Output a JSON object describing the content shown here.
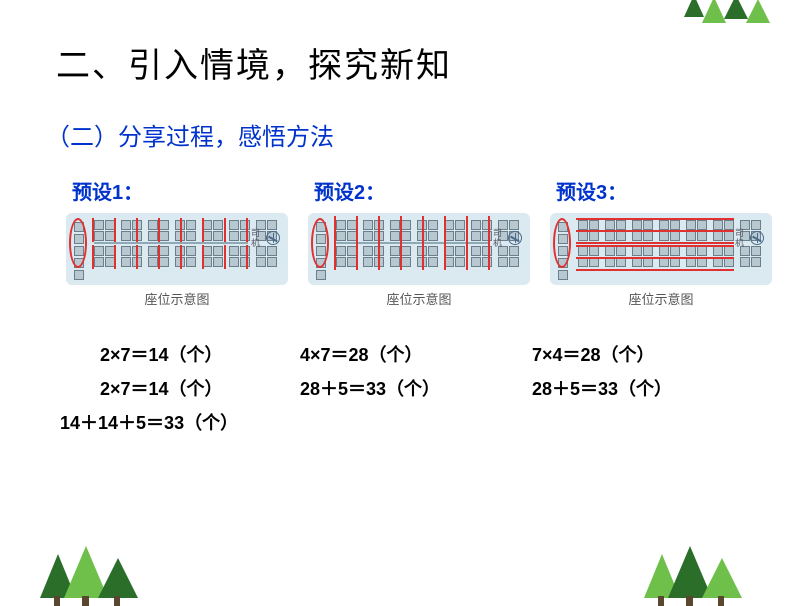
{
  "decor": {
    "tree_green_dark": "#2a6e2a",
    "tree_green_light": "#6fbf4b"
  },
  "main_title": "二、引入情境，探究新知",
  "sub_title": "（二）分享过程，感悟方法",
  "title_color": "#0033cc",
  "presets": {
    "p1": {
      "label": "预设1：",
      "caption": "座位示意图"
    },
    "p2": {
      "label": "预设2：",
      "caption": "座位示意图"
    },
    "p3": {
      "label": "预设3：",
      "caption": "座位示意图"
    }
  },
  "bus": {
    "driver_label": "司机",
    "bg_color": "#dbe9f0",
    "seat_fill": "#b8c8d0",
    "seat_border": "#6b7e8a",
    "annotation_color": "#e03030"
  },
  "calculations": {
    "col1": {
      "line1": "2×7＝14（个）",
      "line2": "2×7＝14（个）",
      "line3": "14＋14＋5＝33（个）"
    },
    "col2": {
      "line1": "4×7＝28（个）",
      "line2": "28＋5＝33（个）"
    },
    "col3": {
      "line1": "7×4＝28（个）",
      "line2": "28＋5＝33（个）"
    }
  }
}
